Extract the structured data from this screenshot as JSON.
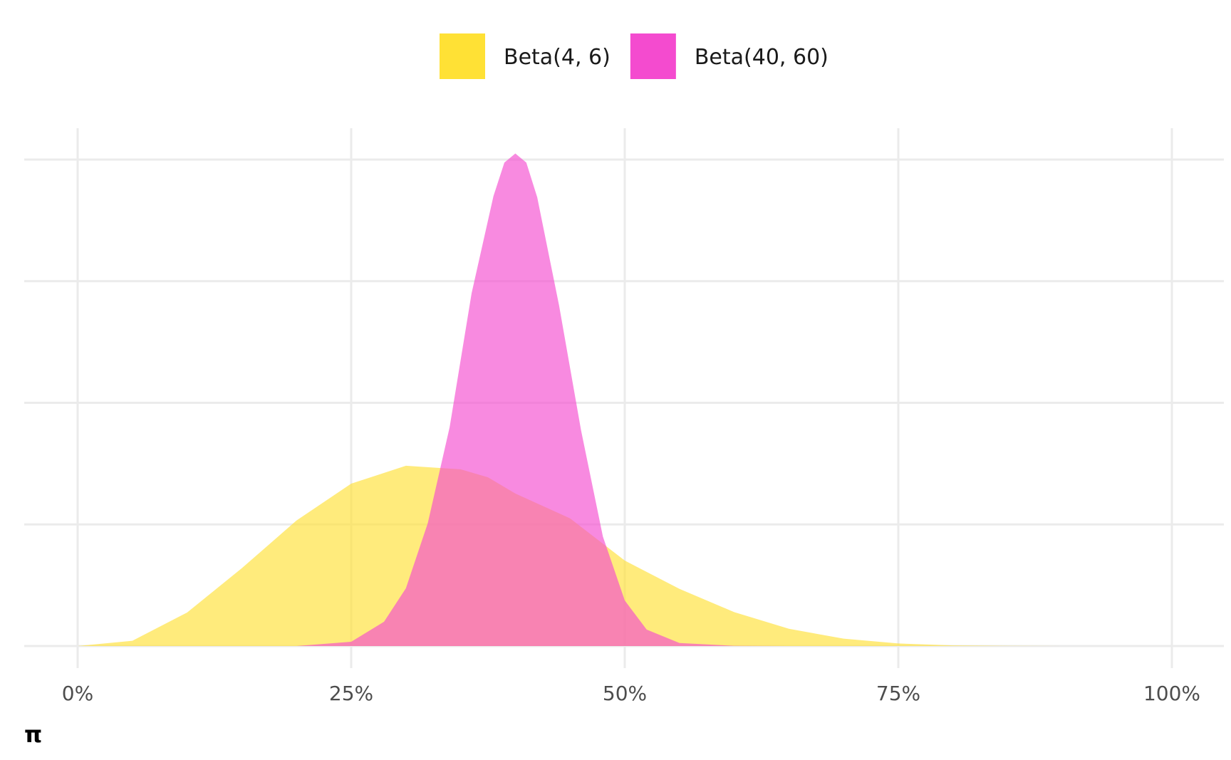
{
  "chart_data": {
    "type": "area",
    "title": "",
    "xlabel": "π",
    "ylabel": "",
    "xlim": [
      0,
      1
    ],
    "ylim": [
      0,
      8
    ],
    "x_ticks": [
      0,
      0.25,
      0.5,
      0.75,
      1.0
    ],
    "x_tick_labels": [
      "0%",
      "25%",
      "50%",
      "75%",
      "100%"
    ],
    "y_gridlines": [
      0,
      2,
      4,
      6,
      8
    ],
    "y_tick_labels_shown": false,
    "grid": true,
    "legend": {
      "position": "top",
      "entries": [
        {
          "label": "Beta(4, 6)",
          "color": "#FFE135"
        },
        {
          "label": "Beta(40, 60)",
          "color": "#F44BCF"
        }
      ]
    },
    "series": [
      {
        "name": "Beta(4, 6)",
        "alpha": 4,
        "beta": 6,
        "color": "#FFE135",
        "opacity": 0.65,
        "x": [
          0,
          0.05,
          0.1,
          0.15,
          0.2,
          0.25,
          0.3,
          0.35,
          0.375,
          0.4,
          0.45,
          0.5,
          0.55,
          0.6,
          0.65,
          0.7,
          0.75,
          0.8,
          0.85,
          0.9,
          0.95,
          1.0
        ],
        "y": [
          0,
          0.087,
          0.551,
          1.279,
          2.064,
          2.67,
          2.964,
          2.906,
          2.775,
          2.508,
          2.1,
          1.406,
          0.94,
          0.557,
          0.284,
          0.122,
          0.042,
          0.011,
          0.002,
          0.0002,
          0.0,
          0.0
        ]
      },
      {
        "name": "Beta(40, 60)",
        "alpha": 40,
        "beta": 60,
        "color": "#F44BCF",
        "opacity": 0.65,
        "x": [
          0.2,
          0.25,
          0.28,
          0.3,
          0.32,
          0.34,
          0.36,
          0.38,
          0.39,
          0.4,
          0.41,
          0.42,
          0.44,
          0.46,
          0.48,
          0.5,
          0.52,
          0.55,
          0.6,
          0.65
        ],
        "y": [
          0.0,
          0.07,
          0.4,
          0.95,
          2.02,
          3.6,
          5.8,
          7.4,
          7.95,
          8.1,
          7.95,
          7.38,
          5.6,
          3.55,
          1.8,
          0.75,
          0.27,
          0.05,
          0.003,
          0.0
        ]
      }
    ]
  }
}
